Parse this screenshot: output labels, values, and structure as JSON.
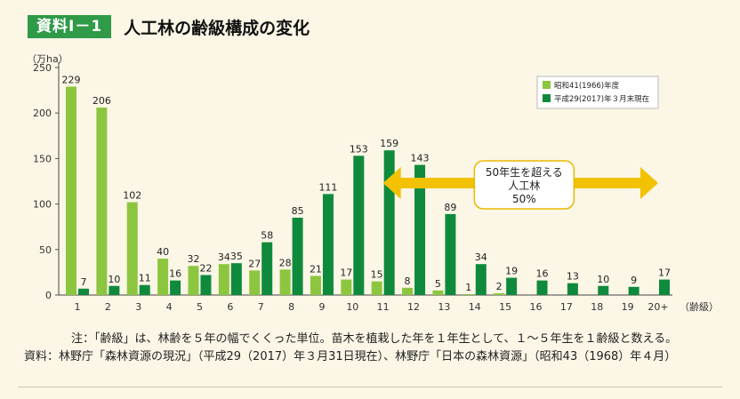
{
  "header": {
    "badge": "資料Ⅰ－1",
    "title": "人工林の齢級構成の変化"
  },
  "chart_data": {
    "type": "bar",
    "ylabel": "（万ha）",
    "xlabel": "（齢級）",
    "ylim": [
      0,
      250
    ],
    "yticks": [
      0,
      50,
      100,
      150,
      200,
      250
    ],
    "grid": false,
    "legend_position": "top-right",
    "categories": [
      "1",
      "2",
      "3",
      "4",
      "5",
      "6",
      "7",
      "8",
      "9",
      "10",
      "11",
      "12",
      "13",
      "14",
      "15",
      "16",
      "17",
      "18",
      "19",
      "20+"
    ],
    "series": [
      {
        "name": "昭和41(1966)年度",
        "color": "#8cc63f",
        "values": [
          229,
          206,
          102,
          40,
          32,
          34,
          27,
          28,
          21,
          17,
          15,
          8,
          5,
          1,
          2,
          null,
          null,
          null,
          null,
          null
        ]
      },
      {
        "name": "平成29(2017)年３月末現在",
        "color": "#0f8a3c",
        "values": [
          7,
          10,
          11,
          16,
          22,
          35,
          58,
          85,
          111,
          153,
          159,
          143,
          89,
          34,
          19,
          16,
          13,
          10,
          9,
          17
        ]
      }
    ],
    "annotation": {
      "lines": [
        "50年生を超える",
        "人工林",
        "50%"
      ],
      "arrow_from_category": "11",
      "arrow_to_category": "20+",
      "arrow_color": "#f2c200"
    }
  },
  "footnotes": {
    "note": "注：「齢級」は、林齢を５年の幅でくくった単位。苗木を植栽した年を１年生として、１～５年生を１齢級と数える。",
    "source": "資料：林野庁「森林資源の現況」（平成29（2017）年３月31日現在）、林野庁「日本の森林資源」（昭和43（1968）年４月）"
  }
}
